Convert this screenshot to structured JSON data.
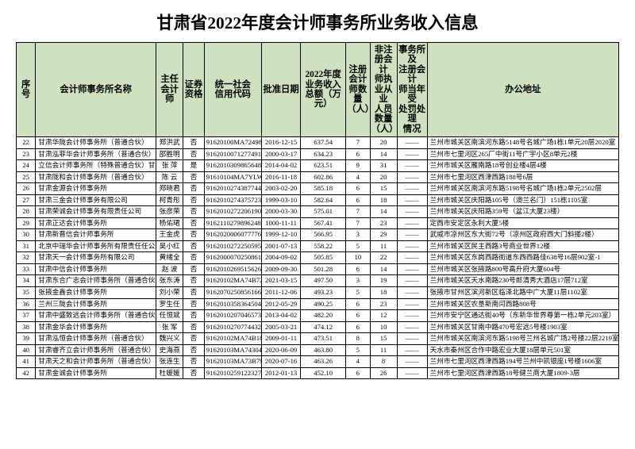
{
  "document": {
    "title": "甘肃省2022年度会计师事务所业务收入信息",
    "title_fontsize": 16,
    "header_bg": "#cfe2c0",
    "header_fontsize": 8.5,
    "body_fontsize": 6.5,
    "columns": [
      "序号",
      "会计师事务所名称",
      "主任\n会计师",
      "证券\n资格",
      "统一社会\n信用代码",
      "批准日期",
      "2022年度业务收入\n总额（万元）",
      "注册会计\n师数量\n（人）",
      "非注册会计\n师执业从业\n人员数量\n（人）",
      "事务所及\n注册会计\n师当年受\n处罚处理\n情况",
      "办公地址"
    ],
    "rows": [
      [
        "22",
        "甘肃华陇会计师事务所（普通合伙）",
        "郑洪武",
        "否",
        "91620100MA724981N",
        "2016-12-15",
        "637.54",
        "7",
        "20",
        "——",
        "兰州市城关区南滨河东路5148号名城广场1栋1单元20层2020室"
      ],
      [
        "23",
        "甘肃泓菲华会计师事务所（普通合伙）",
        "邵胜明",
        "否",
        "91620100712774915A",
        "2000-03-17",
        "634.23",
        "6",
        "14",
        "——",
        "兰州市七里河区265厂中街11号广宇小区8单元2楼"
      ],
      [
        "24",
        "立信会计师事务所（特殊普通合伙）甘肃分所",
        "张 萍",
        "是",
        "91620103098656489N",
        "2014-04-02",
        "623.51",
        "9",
        "31",
        "——",
        "兰州市城关区雁南路18号创业楼4层4楼"
      ],
      [
        "25",
        "甘肃陇和会计师事务所（普通合伙）",
        "陈 云",
        "否",
        "91610104MA7YLW79C",
        "2016-11-18",
        "602.86",
        "4",
        "20",
        "——",
        "兰州市七里河区西津西路188号6层"
      ],
      [
        "26",
        "甘肃金源会计师事务所",
        "郑晓君",
        "否",
        "91620102743877448X",
        "2003-02-20",
        "585.18",
        "6",
        "15",
        "——",
        "兰州市城关区南滨河东路5198号名城广场1栋2单元2502层"
      ],
      [
        "27",
        "甘肃三金会计师事务有限公司",
        "柯青彤",
        "否",
        "916201027437572390",
        "1999-03-10",
        "582.64",
        "6",
        "18",
        "——",
        "兰州市城关区庆阳路105号（澳兰名门）151栋1105室"
      ],
      [
        "28",
        "甘肃荣诚会计师事务有限责任公司",
        "张彦荣",
        "否",
        "916201027220619026",
        "2000-03-30",
        "575.01",
        "7",
        "14",
        "——",
        "兰州市城关区庆阳路359号（盆江大厦23楼）"
      ],
      [
        "29",
        "甘肃正达会计师事务所",
        "杨佑珺",
        "否",
        "916211027989624825L",
        "1000-11-11",
        "567.41",
        "7",
        "23",
        "——",
        "定西市安定区永利大厦5楼"
      ],
      [
        "30",
        "甘肃新晋信会计师事务所",
        "王金虎",
        "否",
        "91620200060777760W",
        "1999-12-10",
        "566.95",
        "3",
        "29",
        "——",
        "武威市凉州区东大街72号（凉州区政府西大门斜搂2楼）"
      ],
      [
        "31",
        "北京中瑞华会计师事务所有限责任任公司兰州分公司",
        "吴小红",
        "否",
        "916201027225059539",
        "2001-07-13",
        "558.22",
        "5",
        "11",
        "——",
        "兰州市城关区民主西路3号商业世界12楼"
      ],
      [
        "32",
        "甘肃天一会计师事务所有限公司",
        "黄绪全",
        "否",
        "916200007025086160",
        "2004-09-02",
        "505.85",
        "10",
        "22",
        "——",
        "兰州市城关区东岗西路街道东西西路佳638号16层902室-1"
      ],
      [
        "33",
        "甘肃中信会计师事务所",
        "赵 波",
        "否",
        "916201026951562627",
        "2009-09-30",
        "501.28",
        "6",
        "14",
        "——",
        "兰州市城关区张掖路800号高升府大厦604号"
      ],
      [
        "34",
        "甘肃东合广志会计师事务所（普通合伙）",
        "张东涛",
        "否",
        "91620102MA74B7280",
        "2021-03-15",
        "497.50",
        "3",
        "19",
        "——",
        "兰州市城关区天水南路230号郎清秀大酒店17层712室"
      ],
      [
        "35",
        "张掖金鑫会计师事务所",
        "刘小荣",
        "否",
        "916207025085616604",
        "2011-12-06",
        "493.23",
        "5",
        "18",
        "——",
        "张掖市甘州区滨河新区临泽北路中广大厦11层1102室"
      ],
      [
        "36",
        "兰州三陇会计师事务所",
        "罗生任",
        "否",
        "916201035836450416",
        "2012-05-29",
        "490.25",
        "6",
        "23",
        "——",
        "兰州市城关区农垦新南闫西路808号"
      ],
      [
        "37",
        "甘肃中盛致远会计师事务所（普通合伙）",
        "任恒斌",
        "否",
        "91620102070465738F",
        "2013-04-02",
        "482.20",
        "6",
        "12",
        "——",
        "兰州市安宁区通达街40号（东新华世界尊第一栋2单元203室）"
      ],
      [
        "38",
        "甘肃金华会计师事务所",
        "张 军",
        "否",
        "916201027077443297",
        "2005-03-21",
        "474.12",
        "6",
        "10",
        "——",
        "兰州市城关区甘南中路470号宏远5号楼1903室"
      ],
      [
        "39",
        "甘肃泓恒会计师事务所（普通合伙）",
        "魏兴义",
        "否",
        "91620102MA74B1842S",
        "2009-01-11",
        "473.51",
        "8",
        "15",
        "——",
        "兰州市城关区南滨河东路5198号兰州名城广场2号楼22层2219室"
      ],
      [
        "40",
        "甘肃睿齐立会计师事务所（普通合伙）",
        "史海燕",
        "否",
        "91620103MA7430456A",
        "2020-06-09",
        "463.80",
        "5",
        "11",
        "——",
        "天水市秦州区合作中路宏业大厦18层单元501室"
      ],
      [
        "41",
        "甘肃天之和会计师事务所（普通合伙）",
        "张连生",
        "否",
        "91620103MA73B7912F",
        "2020-07-16",
        "463.26",
        "4",
        "8",
        "——",
        "兰州市七里河区西津西路194号兰州中凯银座1号楼1606室"
      ],
      [
        "42",
        "甘肃金诚会计师事务所",
        "杜媛媛",
        "否",
        "91620102591223270Y",
        "2012-01-13",
        "452.10",
        "6",
        "26",
        "——",
        "兰州市七里河区西津西路18号健兰商大厦1809-3层"
      ]
    ]
  }
}
